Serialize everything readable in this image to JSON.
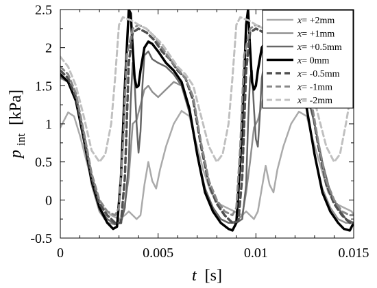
{
  "chart_data": {
    "type": "line",
    "xlabel_var": "t",
    "xlabel_unit": "[s]",
    "ylabel_var": "p",
    "ylabel_sub": "int",
    "ylabel_unit": "[kPa]",
    "xlim": [
      0,
      0.015
    ],
    "ylim": [
      -0.5,
      2.5
    ],
    "xticks": [
      0,
      0.005,
      0.01,
      0.015
    ],
    "xtick_labels": [
      "0",
      "0.005",
      "0.01",
      "0.015"
    ],
    "yticks": [
      -0.5,
      0,
      0.5,
      1,
      1.5,
      2,
      2.5
    ],
    "ytick_labels": [
      "-0.5",
      "0",
      "0.5",
      "1",
      "1.5",
      "2",
      "2.5"
    ],
    "grid": false,
    "legend_position": "top-right",
    "legend_var": "x",
    "series": [
      {
        "name": "= +2mm",
        "color": "#aaaaaa",
        "dash": "solid",
        "width": 2.5,
        "x": [
          0,
          0.0004,
          0.0007,
          0.001,
          0.0014,
          0.0018,
          0.0022,
          0.0026,
          0.003,
          0.0033,
          0.0035,
          0.0037,
          0.0039,
          0.0041,
          0.0043,
          0.0045,
          0.0047,
          0.0049,
          0.0051,
          0.0054,
          0.0058,
          0.0062,
          0.0066,
          0.0069,
          0.0073,
          0.0077,
          0.0081,
          0.0085,
          0.0089,
          0.0093,
          0.0095,
          0.0097,
          0.0099,
          0.0101,
          0.0103,
          0.0105,
          0.0107,
          0.0109,
          0.0111,
          0.0114,
          0.0118,
          0.0122,
          0.0126,
          0.0129,
          0.0133,
          0.0137,
          0.0141,
          0.0145,
          0.0149,
          0.015
        ],
        "y": [
          0.95,
          1.15,
          1.1,
          0.85,
          0.45,
          0.1,
          -0.1,
          -0.2,
          -0.25,
          -0.2,
          -0.15,
          -0.2,
          -0.25,
          -0.2,
          0.2,
          0.5,
          0.25,
          0.15,
          0.4,
          0.7,
          1.0,
          1.17,
          1.1,
          0.8,
          0.4,
          0.1,
          -0.05,
          -0.1,
          -0.15,
          -0.2,
          -0.15,
          -0.2,
          -0.25,
          -0.15,
          0.15,
          0.45,
          0.2,
          0.1,
          0.4,
          0.7,
          1.0,
          1.16,
          1.1,
          0.8,
          0.45,
          0.1,
          -0.05,
          -0.1,
          -0.15,
          -0.2
        ]
      },
      {
        "name": "= +1mm",
        "color": "#909090",
        "dash": "solid",
        "width": 2.5,
        "x": [
          0,
          0.0004,
          0.0008,
          0.0012,
          0.0016,
          0.002,
          0.0024,
          0.0028,
          0.0031,
          0.0033,
          0.0035,
          0.0037,
          0.0039,
          0.0041,
          0.0043,
          0.0045,
          0.0047,
          0.005,
          0.0054,
          0.0058,
          0.0062,
          0.0066,
          0.007,
          0.0074,
          0.0078,
          0.0082,
          0.0086,
          0.009,
          0.0093,
          0.0095,
          0.0097,
          0.0099,
          0.0101,
          0.0103,
          0.0105,
          0.0107,
          0.0109,
          0.0111,
          0.0114,
          0.0118,
          0.0122,
          0.0126,
          0.013,
          0.0134,
          0.0138,
          0.0142,
          0.0146,
          0.015
        ],
        "y": [
          1.6,
          1.55,
          1.3,
          0.8,
          0.2,
          -0.15,
          -0.3,
          -0.32,
          -0.25,
          -0.05,
          0.3,
          1.0,
          1.05,
          1.25,
          1.45,
          1.5,
          1.42,
          1.35,
          1.45,
          1.55,
          1.5,
          1.15,
          0.6,
          0.15,
          -0.1,
          -0.25,
          -0.3,
          -0.28,
          -0.2,
          0.1,
          0.5,
          0.95,
          1.05,
          1.25,
          1.5,
          1.55,
          1.5,
          1.45,
          1.5,
          1.55,
          1.5,
          1.2,
          0.6,
          0.15,
          -0.1,
          -0.25,
          -0.3,
          -0.3
        ]
      },
      {
        "name": "= +0.5mm",
        "color": "#666666",
        "dash": "solid",
        "width": 2.5,
        "x": [
          0,
          0.0004,
          0.0008,
          0.0012,
          0.0016,
          0.002,
          0.0024,
          0.0028,
          0.0031,
          0.0033,
          0.0035,
          0.0036,
          0.0037,
          0.0038,
          0.0039,
          0.004,
          0.0041,
          0.0042,
          0.0043,
          0.0045,
          0.0047,
          0.005,
          0.0054,
          0.0058,
          0.0062,
          0.0066,
          0.007,
          0.0074,
          0.0078,
          0.0082,
          0.0086,
          0.009,
          0.0093,
          0.0095,
          0.0096,
          0.0097,
          0.0098,
          0.0099,
          0.01,
          0.0101,
          0.0102,
          0.0103,
          0.0105,
          0.0107,
          0.011,
          0.0114,
          0.0118,
          0.0122,
          0.0126,
          0.013,
          0.0134,
          0.0138,
          0.0142,
          0.0146,
          0.015
        ],
        "y": [
          1.62,
          1.55,
          1.3,
          0.85,
          0.25,
          -0.1,
          -0.25,
          -0.32,
          -0.3,
          -0.1,
          0.5,
          1.3,
          1.8,
          1.55,
          1.0,
          0.62,
          0.9,
          1.5,
          1.9,
          1.95,
          1.85,
          1.8,
          1.75,
          1.65,
          1.5,
          1.15,
          0.6,
          0.15,
          -0.1,
          -0.25,
          -0.3,
          -0.3,
          -0.25,
          0.2,
          1.0,
          1.6,
          1.7,
          1.2,
          0.8,
          0.7,
          1.1,
          1.6,
          1.9,
          1.9,
          1.85,
          1.8,
          1.75,
          1.6,
          1.4,
          1.0,
          0.5,
          0.1,
          -0.1,
          -0.25,
          -0.3
        ]
      },
      {
        "name": "= 0mm",
        "color": "#000000",
        "dash": "solid",
        "width": 3.5,
        "x": [
          0,
          0.0004,
          0.0008,
          0.0012,
          0.0016,
          0.002,
          0.0024,
          0.0027,
          0.0029,
          0.0031,
          0.0033,
          0.0035,
          0.0036,
          0.0037,
          0.0038,
          0.0039,
          0.004,
          0.0041,
          0.0043,
          0.0045,
          0.0047,
          0.005,
          0.0054,
          0.0058,
          0.0062,
          0.0066,
          0.007,
          0.0074,
          0.0078,
          0.0082,
          0.0086,
          0.0088,
          0.009,
          0.0092,
          0.0094,
          0.0095,
          0.0096,
          0.0097,
          0.0098,
          0.0099,
          0.01,
          0.0101,
          0.0103,
          0.0105,
          0.0107,
          0.011,
          0.0114,
          0.0118,
          0.0122,
          0.0126,
          0.013,
          0.0134,
          0.0138,
          0.0142,
          0.0145,
          0.0148,
          0.015
        ],
        "y": [
          1.65,
          1.55,
          1.3,
          0.8,
          0.25,
          -0.1,
          -0.3,
          -0.38,
          -0.35,
          0.3,
          1.5,
          2.5,
          2.45,
          2.0,
          1.6,
          1.48,
          1.5,
          1.7,
          2.0,
          2.08,
          2.05,
          1.95,
          1.8,
          1.7,
          1.55,
          1.2,
          0.6,
          0.1,
          -0.15,
          -0.3,
          -0.38,
          -0.4,
          -0.3,
          0.5,
          1.6,
          2.3,
          2.5,
          2.0,
          1.55,
          1.45,
          1.5,
          1.7,
          2.0,
          2.08,
          2.05,
          1.95,
          1.8,
          1.7,
          1.55,
          1.2,
          0.6,
          0.1,
          -0.15,
          -0.3,
          -0.38,
          -0.4,
          -0.3
        ]
      },
      {
        "name": "= -0.5mm",
        "color": "#505050",
        "dash": "dashed",
        "width": 3.5,
        "x": [
          0,
          0.0004,
          0.0008,
          0.0012,
          0.0016,
          0.002,
          0.0024,
          0.0028,
          0.0031,
          0.0033,
          0.0035,
          0.0037,
          0.004,
          0.0044,
          0.0048,
          0.0052,
          0.0056,
          0.006,
          0.0064,
          0.0068,
          0.0072,
          0.0076,
          0.008,
          0.0084,
          0.0088,
          0.0091,
          0.0093,
          0.0095,
          0.0097,
          0.01,
          0.0104,
          0.0108,
          0.0112,
          0.0116,
          0.012,
          0.0124,
          0.0128,
          0.0132,
          0.0136,
          0.014,
          0.0144,
          0.0148,
          0.015
        ],
        "y": [
          1.7,
          1.6,
          1.35,
          0.85,
          0.3,
          -0.05,
          -0.2,
          -0.3,
          -0.3,
          0.3,
          1.8,
          2.2,
          2.25,
          2.2,
          2.1,
          1.95,
          1.85,
          1.7,
          1.6,
          1.3,
          0.7,
          0.2,
          -0.05,
          -0.2,
          -0.3,
          -0.28,
          0.3,
          1.7,
          2.2,
          2.25,
          2.2,
          2.1,
          1.95,
          1.85,
          1.7,
          1.6,
          1.3,
          0.7,
          0.2,
          -0.05,
          -0.2,
          -0.3,
          -0.3
        ]
      },
      {
        "name": "= -1mm",
        "color": "#888888",
        "dash": "dashed",
        "width": 3,
        "x": [
          0,
          0.0004,
          0.0008,
          0.0012,
          0.0016,
          0.002,
          0.0024,
          0.0028,
          0.003,
          0.0032,
          0.0034,
          0.0037,
          0.004,
          0.0044,
          0.0048,
          0.0052,
          0.0056,
          0.006,
          0.0064,
          0.0068,
          0.0072,
          0.0076,
          0.008,
          0.0084,
          0.0088,
          0.009,
          0.0092,
          0.0094,
          0.0097,
          0.01,
          0.0104,
          0.0108,
          0.0112,
          0.0116,
          0.012,
          0.0124,
          0.0128,
          0.0132,
          0.0136,
          0.014,
          0.0144,
          0.0148,
          0.015
        ],
        "y": [
          1.75,
          1.65,
          1.4,
          0.9,
          0.35,
          0.0,
          -0.15,
          -0.2,
          -0.1,
          0.7,
          1.9,
          2.25,
          2.3,
          2.25,
          2.15,
          2.0,
          1.85,
          1.72,
          1.6,
          1.35,
          0.75,
          0.25,
          0.0,
          -0.15,
          -0.2,
          -0.1,
          0.7,
          1.9,
          2.25,
          2.3,
          2.25,
          2.15,
          2.0,
          1.85,
          1.72,
          1.6,
          1.35,
          0.75,
          0.25,
          0.0,
          -0.15,
          -0.2,
          -0.2
        ]
      },
      {
        "name": "= -2mm",
        "color": "#c0c0c0",
        "dash": "dashed",
        "width": 3,
        "x": [
          0,
          0.0004,
          0.0008,
          0.0012,
          0.0016,
          0.002,
          0.0023,
          0.0026,
          0.0028,
          0.003,
          0.0032,
          0.0034,
          0.0037,
          0.004,
          0.0044,
          0.0048,
          0.0052,
          0.0056,
          0.006,
          0.0064,
          0.0068,
          0.0072,
          0.0076,
          0.008,
          0.0083,
          0.0086,
          0.0088,
          0.009,
          0.0092,
          0.0094,
          0.0097,
          0.01,
          0.0104,
          0.0108,
          0.0112,
          0.0116,
          0.012,
          0.0124,
          0.0128,
          0.0132,
          0.0136,
          0.014,
          0.0143,
          0.0146,
          0.0148,
          0.015
        ],
        "y": [
          1.88,
          1.75,
          1.5,
          1.1,
          0.65,
          0.5,
          0.6,
          1.0,
          1.6,
          2.3,
          2.4,
          2.38,
          2.35,
          2.3,
          2.25,
          2.15,
          2.05,
          1.9,
          1.75,
          1.65,
          1.5,
          1.1,
          0.7,
          0.5,
          0.6,
          1.0,
          1.6,
          2.3,
          2.4,
          2.38,
          2.35,
          2.3,
          2.25,
          2.15,
          2.05,
          1.9,
          1.75,
          1.65,
          1.5,
          1.1,
          0.7,
          0.5,
          0.6,
          1.0,
          1.3,
          1.5
        ]
      }
    ]
  }
}
